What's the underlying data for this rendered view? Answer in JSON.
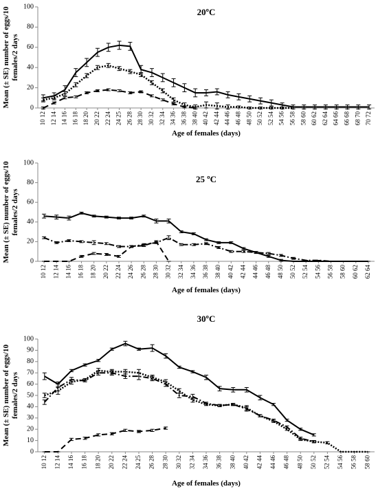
{
  "chart_data": [
    {
      "type": "line",
      "title": "20ºC",
      "ylabel": [
        "Mean (± SE) number of eggs/10",
        "females/2 days"
      ],
      "xlabel": "Age of females (days)",
      "categories": [
        "10 12",
        "12 14",
        "14 16",
        "16 18",
        "18 20",
        "20 22",
        "22 24",
        "24 25",
        "26 28",
        "28 30",
        "30 32",
        "32 34",
        "34 36",
        "36 38",
        "38 40",
        "40 42",
        "42 44",
        "44 46",
        "46 48",
        "48 50",
        "50 52",
        "52 54",
        "54 56",
        "56 58",
        "58 60",
        "60 62",
        "62 64",
        "64 66",
        "66 68",
        "68 70",
        "70 72"
      ],
      "ylim": [
        0,
        100
      ],
      "yticks": [
        0,
        20,
        40,
        60,
        80,
        100
      ],
      "series": [
        {
          "color": "#000000",
          "dash": "solid",
          "values": [
            10,
            12,
            18,
            35,
            45,
            55,
            60,
            62,
            61,
            38,
            35,
            30,
            25,
            20,
            15,
            15,
            16,
            13,
            11,
            9,
            7,
            5,
            3,
            1,
            1,
            1,
            1,
            1,
            1,
            1,
            1
          ],
          "errors": [
            3,
            3,
            4,
            4,
            4,
            4,
            4,
            4,
            4,
            4,
            4,
            4,
            4,
            4,
            4,
            3,
            3,
            3,
            3,
            3,
            3,
            3,
            2,
            2,
            2,
            2,
            2,
            2,
            2,
            2,
            2
          ]
        },
        {
          "color": "#000000",
          "dash": "dotted",
          "values": [
            8,
            10,
            14,
            23,
            32,
            40,
            42,
            39,
            36,
            33,
            25,
            17,
            8,
            3,
            1,
            3,
            2,
            1,
            1,
            0,
            0,
            0,
            0,
            0,
            null,
            null,
            null,
            null,
            null,
            null,
            null
          ],
          "errors": [
            2,
            2,
            2,
            2,
            2,
            2,
            2,
            2,
            2,
            2,
            2,
            2,
            2,
            2,
            2,
            3,
            3,
            2,
            1,
            1,
            1,
            1,
            1,
            1,
            null,
            null,
            null,
            null,
            null,
            null,
            null
          ]
        },
        {
          "color": "#000000",
          "dash": "dashed",
          "values": [
            0,
            5,
            10,
            11,
            15,
            17,
            18,
            17,
            15,
            16,
            12,
            8,
            4,
            1,
            0,
            null,
            null,
            null,
            null,
            null,
            null,
            null,
            null,
            null,
            null,
            null,
            null,
            null,
            null,
            null,
            null
          ],
          "errors": [
            1,
            1,
            1,
            1,
            1,
            1,
            1,
            1,
            1,
            1,
            1,
            1,
            1,
            1,
            1,
            null,
            null,
            null,
            null,
            null,
            null,
            null,
            null,
            null,
            null,
            null,
            null,
            null,
            null,
            null,
            null
          ]
        }
      ]
    },
    {
      "type": "line",
      "title": "25 ºC",
      "ylabel": [
        "Mean (± SE) number of eggs/10",
        "females/2 days"
      ],
      "xlabel": "Age of females (days)",
      "categories": [
        "10 12",
        "12 14",
        "14 16",
        "16 18",
        "18 20",
        "20 22",
        "22 24",
        "24 26",
        "26 28",
        "28 30",
        "30 32",
        "32 34",
        "34 36",
        "36 38",
        "38 40",
        "40 42",
        "42 44",
        "44 46",
        "46 48",
        "48 50",
        "50 52",
        "52 54",
        "54 56",
        "56 58",
        "58 60",
        "60 62",
        "62 64"
      ],
      "ylim": [
        0,
        100
      ],
      "yticks": [
        0,
        20,
        40,
        60,
        80,
        100
      ],
      "series": [
        {
          "color": "#000000",
          "dash": "solid",
          "values": [
            46,
            45,
            44,
            49,
            46,
            45,
            44,
            44,
            46,
            41,
            41,
            30,
            28,
            22,
            19,
            19,
            13,
            9,
            5,
            1,
            0,
            0,
            0,
            0,
            0,
            0,
            0
          ],
          "errors": [
            2,
            2,
            2,
            1,
            1,
            1,
            1,
            1,
            1,
            2,
            2,
            1,
            1,
            1,
            1,
            1,
            1,
            1,
            1,
            1,
            0,
            0,
            0,
            0,
            0,
            0,
            0
          ]
        },
        {
          "color": "#000000",
          "dash": "dashdot",
          "values": [
            24,
            19,
            21,
            20,
            19,
            18,
            15,
            15,
            17,
            19,
            24,
            17,
            17,
            18,
            14,
            10,
            10,
            9,
            8,
            6,
            3,
            1,
            1,
            0,
            0,
            0,
            0
          ],
          "errors": [
            1,
            1,
            1,
            1,
            2,
            1,
            1,
            1,
            1,
            1,
            2,
            1,
            1,
            1,
            1,
            1,
            1,
            1,
            1,
            1,
            1,
            0,
            0,
            0,
            0,
            0,
            0
          ]
        },
        {
          "color": "#000000",
          "dash": "dashed",
          "values": [
            0,
            0,
            0,
            5,
            8,
            7,
            5,
            15,
            16,
            20,
            0,
            null,
            null,
            null,
            null,
            null,
            null,
            null,
            null,
            null,
            null,
            null,
            null,
            null,
            null,
            null,
            null
          ],
          "errors": [
            0,
            0,
            0,
            1,
            1,
            1,
            1,
            1,
            1,
            1,
            0,
            null,
            null,
            null,
            null,
            null,
            null,
            null,
            null,
            null,
            null,
            null,
            null,
            null,
            null,
            null,
            null
          ]
        }
      ]
    },
    {
      "type": "line",
      "title": "30ºC",
      "ylabel": [
        "Mean (± SE) number of eggs/10",
        "females/2 days"
      ],
      "xlabel": "Age of females (days)",
      "categories": [
        "10 12",
        "12 14",
        "14 16",
        "16 18",
        "18 20",
        "20 22",
        "22 24",
        "24 25",
        "26 28",
        "28 30",
        "30 32",
        "32 34",
        "34 36",
        "36 38",
        "38 40",
        "40 42",
        "42 44",
        "44 46",
        "46 48",
        "48 50",
        "50 52",
        "52 54",
        "54 56",
        "56 58",
        "58 60"
      ],
      "ylim": [
        0,
        100
      ],
      "yticks": [
        0,
        10,
        20,
        30,
        40,
        50,
        60,
        70,
        80,
        90,
        100
      ],
      "series": [
        {
          "color": "#000000",
          "dash": "solid",
          "values": [
            67,
            60,
            72,
            77,
            81,
            91,
            96,
            91,
            92,
            85,
            75,
            71,
            66,
            56,
            55,
            55,
            48,
            42,
            28,
            20,
            15,
            null,
            null,
            null,
            null
          ],
          "errors": [
            3,
            2,
            1,
            1,
            1,
            1,
            2,
            1,
            3,
            2,
            1,
            1,
            2,
            2,
            2,
            2,
            2,
            1,
            1,
            1,
            1,
            null,
            null,
            null,
            null
          ]
        },
        {
          "color": "#000000",
          "dash": "dashdot",
          "values": [
            44,
            57,
            64,
            63,
            70,
            70,
            67,
            67,
            65,
            60,
            50,
            49,
            43,
            41,
            42,
            38,
            32,
            28,
            22,
            12,
            9,
            null,
            null,
            null,
            null
          ],
          "errors": [
            2,
            3,
            2,
            1,
            2,
            2,
            2,
            3,
            2,
            2,
            2,
            2,
            1,
            1,
            1,
            2,
            1,
            1,
            1,
            1,
            1,
            null,
            null,
            null,
            null
          ]
        },
        {
          "color": "#000000",
          "dash": "dotted",
          "values": [
            50,
            54,
            62,
            64,
            72,
            71,
            71,
            70,
            66,
            62,
            54,
            46,
            42,
            41,
            42,
            39,
            32,
            27,
            20,
            11,
            9,
            8,
            0,
            0,
            0
          ],
          "errors": [
            2,
            3,
            2,
            1,
            2,
            2,
            2,
            3,
            2,
            2,
            2,
            2,
            1,
            1,
            1,
            2,
            1,
            1,
            1,
            1,
            1,
            1,
            0,
            0,
            0
          ]
        },
        {
          "color": "#000000",
          "dash": "dashed",
          "values": [
            0,
            0,
            11,
            12,
            15,
            16,
            19,
            18,
            19,
            21,
            null,
            null,
            null,
            null,
            null,
            null,
            null,
            null,
            null,
            null,
            null,
            null,
            null,
            null,
            null
          ],
          "errors": [
            0,
            0,
            1,
            1,
            1,
            1,
            1,
            1,
            1,
            1,
            null,
            null,
            null,
            null,
            null,
            null,
            null,
            null,
            null,
            null,
            null,
            null,
            null,
            null,
            null
          ]
        }
      ]
    }
  ]
}
